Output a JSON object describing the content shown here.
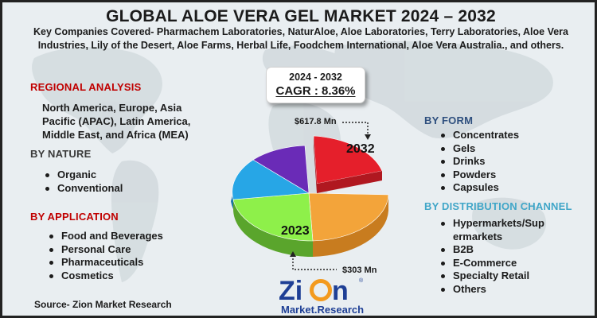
{
  "header": {
    "title": "GLOBAL ALOE VERA GEL MARKET 2024 – 2032",
    "companies": "Key Companies Covered- Pharmachem Laboratories, NaturAloe, Aloe Laboratories, Terry Laboratories, Aloe Vera Industries, Lily of the Desert, Aloe Farms, Herbal Life, Foodchem International, Aloe Vera Australia., and others."
  },
  "regional": {
    "title": "REGIONAL ANALYSIS",
    "text": "North America, Europe, Asia Pacific (APAC), Latin America, Middle East, and Africa (MEA)"
  },
  "nature": {
    "title": "BY NATURE",
    "items": [
      "Organic",
      "Conventional"
    ]
  },
  "application": {
    "title": "BY APPLICATION",
    "items": [
      "Food and Beverages",
      "Personal Care",
      "Pharmaceuticals",
      "Cosmetics"
    ]
  },
  "form": {
    "title": "BY FORM",
    "items": [
      "Concentrates",
      "Gels",
      "Drinks",
      "Powders",
      "Capsules"
    ]
  },
  "distribution": {
    "title": "BY DISTRIBUTION CHANNEL",
    "items": [
      "Hypermarkets/Sup ermarkets",
      "B2B",
      "E-Commerce",
      "Specialty Retail",
      "Others"
    ]
  },
  "cagr": {
    "range": "2024 - 2032",
    "value": "CAGR : 8.36%"
  },
  "pie": {
    "value_2032": "$617.8 Mn",
    "value_2023": "$303 Mn",
    "year_2032": "2032",
    "year_2023": "2023",
    "colors": [
      "#e51f2b",
      "#f3a43a",
      "#8ef04a",
      "#27a6e6",
      "#6a2bb7"
    ]
  },
  "source": "Source- Zion Market Research",
  "logo": {
    "name": "Zion",
    "tagline": "Market.Research",
    "mark": "®"
  },
  "colors": {
    "title_red": "#c00000",
    "form_navy": "#2e4f7e",
    "dist_cyan": "#41a6c8"
  }
}
